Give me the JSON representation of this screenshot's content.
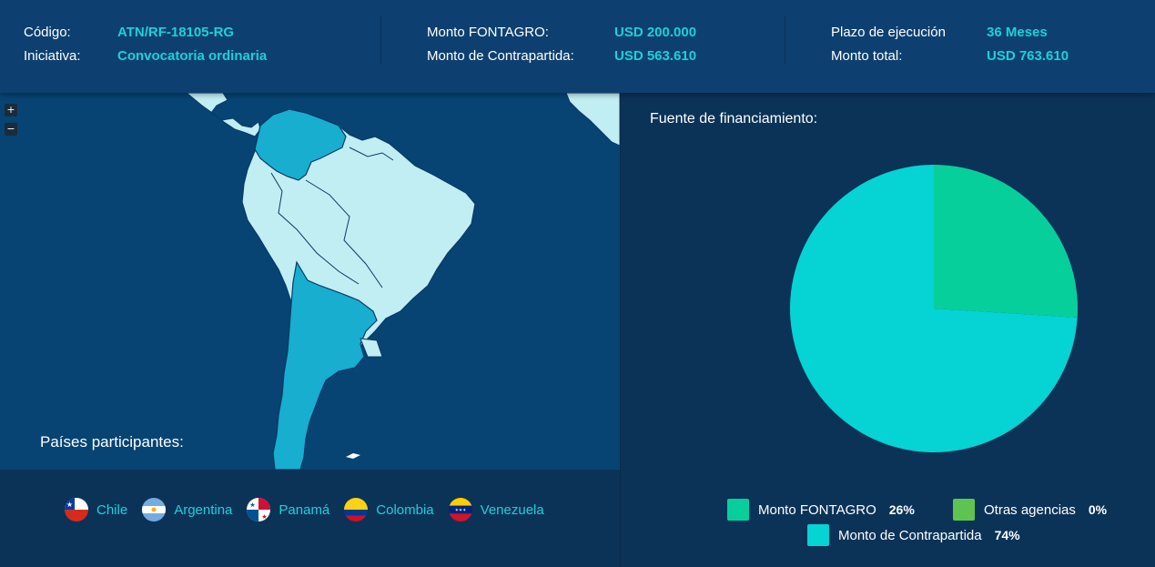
{
  "header": {
    "codigo_label": "Código:",
    "codigo_value": "ATN/RF-18105-RG",
    "iniciativa_label": "Iniciativa:",
    "iniciativa_value": "Convocatoria ordinaria",
    "monto_fontagro_label": "Monto FONTAGRO:",
    "monto_fontagro_value": "USD 200.000",
    "monto_contrapartida_label": "Monto de Contrapartida:",
    "monto_contrapartida_value": "USD 563.610",
    "plazo_label": "Plazo de ejecución",
    "plazo_value": "36 Meses",
    "monto_total_label": "Monto total:",
    "monto_total_value": "USD 763.610"
  },
  "map": {
    "zoom_in": "+",
    "zoom_out": "−",
    "highlight_color": "#17aed0",
    "land_color": "#c1eef3",
    "ocean_color": "#074473"
  },
  "paises": {
    "title": "Países participantes:",
    "items": [
      {
        "name": "Chile",
        "icon": "chile-flag-icon"
      },
      {
        "name": "Argentina",
        "icon": "argentina-flag-icon"
      },
      {
        "name": "Panamá",
        "icon": "panama-flag-icon"
      },
      {
        "name": "Colombia",
        "icon": "colombia-flag-icon"
      },
      {
        "name": "Venezuela",
        "icon": "venezuela-flag-icon"
      }
    ]
  },
  "financiamiento": {
    "title": "Fuente de financiamiento:"
  },
  "chart_data": {
    "type": "pie",
    "title": "",
    "slices": [
      {
        "label": "Monto FONTAGRO",
        "value": 26,
        "pct_label": "26%",
        "color": "#07cf9c"
      },
      {
        "label": "Otras agencias",
        "value": 0,
        "pct_label": "0%",
        "color": "#5ec44f"
      },
      {
        "label": "Monto de Contrapartida",
        "value": 74,
        "pct_label": "74%",
        "color": "#06d3d3"
      }
    ],
    "legend_position": "bottom"
  }
}
